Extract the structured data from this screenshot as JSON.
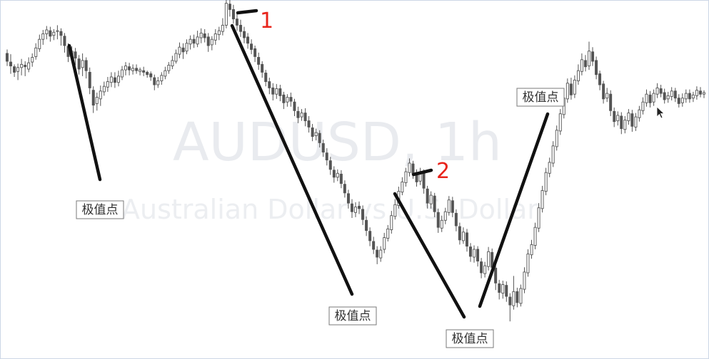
{
  "chart_data": {
    "type": "candlestick",
    "symbol": "AUDUSD, 1h",
    "description": "Australian Dollar vs U.S. Dollar",
    "candles": [
      [
        7.0,
        6.0,
        7.5,
        5.4
      ],
      [
        5.9,
        5.4,
        6.9,
        4.4
      ],
      [
        5.3,
        4.6,
        5.6,
        4.0
      ],
      [
        4.7,
        5.2,
        5.7,
        3.6
      ],
      [
        5.2,
        5.6,
        6.3,
        4.2
      ],
      [
        5.5,
        5.3,
        6.0,
        4.1
      ],
      [
        5.0,
        5.8,
        6.5,
        4.6
      ],
      [
        5.9,
        6.5,
        7.0,
        5.3
      ],
      [
        6.6,
        7.7,
        8.3,
        6.2
      ],
      [
        7.6,
        8.8,
        9.4,
        7.2
      ],
      [
        8.8,
        9.5,
        10.0,
        8.1
      ],
      [
        9.5,
        10.0,
        10.5,
        8.8
      ],
      [
        9.9,
        9.2,
        10.4,
        8.5
      ],
      [
        9.3,
        9.7,
        10.1,
        8.7
      ],
      [
        9.8,
        9.9,
        10.6,
        8.8
      ],
      [
        9.8,
        9.3,
        10.2,
        8.0
      ],
      [
        9.2,
        8.0,
        9.6,
        7.1
      ],
      [
        7.9,
        6.6,
        8.3,
        5.9
      ],
      [
        6.7,
        7.3,
        7.9,
        6.2
      ],
      [
        7.2,
        6.4,
        7.7,
        5.5
      ],
      [
        6.3,
        5.0,
        6.8,
        4.3
      ],
      [
        5.2,
        6.1,
        7.0,
        4.1
      ],
      [
        6.1,
        4.8,
        6.5,
        3.8
      ],
      [
        4.6,
        2.6,
        5.2,
        1.8
      ],
      [
        2.3,
        0.4,
        2.8,
        -0.6
      ],
      [
        0.6,
        1.4,
        2.0,
        -0.3
      ],
      [
        1.2,
        2.2,
        2.9,
        0.3
      ],
      [
        2.1,
        2.8,
        3.4,
        1.6
      ],
      [
        2.7,
        3.4,
        4.0,
        2.1
      ],
      [
        3.3,
        4.0,
        4.6,
        2.7
      ],
      [
        3.9,
        3.3,
        4.6,
        2.6
      ],
      [
        3.3,
        4.1,
        4.8,
        2.8
      ],
      [
        4.0,
        4.9,
        5.4,
        3.6
      ],
      [
        4.9,
        5.4,
        5.9,
        4.2
      ],
      [
        5.3,
        4.9,
        5.8,
        4.2
      ],
      [
        4.8,
        5.1,
        5.6,
        4.3
      ],
      [
        5.1,
        4.8,
        5.6,
        4.4
      ],
      [
        4.7,
        4.9,
        5.2,
        4.2
      ],
      [
        4.8,
        4.6,
        5.3,
        4.1
      ],
      [
        4.6,
        4.3,
        4.8,
        3.9
      ],
      [
        4.4,
        4.0,
        4.7,
        3.5
      ],
      [
        3.9,
        3.0,
        4.3,
        2.3
      ],
      [
        3.0,
        3.5,
        4.0,
        2.6
      ],
      [
        3.5,
        4.2,
        4.6,
        3.0
      ],
      [
        4.1,
        4.8,
        5.3,
        3.7
      ],
      [
        4.8,
        5.5,
        5.9,
        4.4
      ],
      [
        5.4,
        6.1,
        6.7,
        5.0
      ],
      [
        6.0,
        7.0,
        7.5,
        5.7
      ],
      [
        6.9,
        7.8,
        8.4,
        6.4
      ],
      [
        7.7,
        7.2,
        8.3,
        6.3
      ],
      [
        7.3,
        8.3,
        8.8,
        6.9
      ],
      [
        8.2,
        8.8,
        9.3,
        7.5
      ],
      [
        8.8,
        8.3,
        9.4,
        7.7
      ],
      [
        8.2,
        9.1,
        9.9,
        7.8
      ],
      [
        9.0,
        9.6,
        10.2,
        8.3
      ],
      [
        9.5,
        9.0,
        10.1,
        8.4
      ],
      [
        9.1,
        8.0,
        9.6,
        7.2
      ],
      [
        8.1,
        8.8,
        9.2,
        7.4
      ],
      [
        8.7,
        9.5,
        10.1,
        8.1
      ],
      [
        9.4,
        9.9,
        10.4,
        8.7
      ],
      [
        9.8,
        10.6,
        11.5,
        9.3
      ],
      [
        10.6,
        13.4,
        14.4,
        10.2
      ],
      [
        13.3,
        12.6,
        15.0,
        11.7
      ],
      [
        12.6,
        11.4,
        13.2,
        10.8
      ],
      [
        11.4,
        10.6,
        12.1,
        9.9
      ],
      [
        10.6,
        9.8,
        11.3,
        9.1
      ],
      [
        9.8,
        9.0,
        10.4,
        8.3
      ],
      [
        9.1,
        8.3,
        9.6,
        7.6
      ],
      [
        8.2,
        7.5,
        8.8,
        6.9
      ],
      [
        7.6,
        6.6,
        8.0,
        5.9
      ],
      [
        6.5,
        5.6,
        7.1,
        4.9
      ],
      [
        5.6,
        4.6,
        6.0,
        3.9
      ],
      [
        4.5,
        3.4,
        4.9,
        2.8
      ],
      [
        3.4,
        2.6,
        3.9,
        1.8
      ],
      [
        2.6,
        1.8,
        3.2,
        1.0
      ],
      [
        1.8,
        2.5,
        3.1,
        1.2
      ],
      [
        2.5,
        1.6,
        3.0,
        0.9
      ],
      [
        1.7,
        0.7,
        2.1,
        -0.1
      ],
      [
        0.8,
        1.4,
        1.8,
        0.2
      ],
      [
        1.4,
        0.9,
        2.0,
        0.2
      ],
      [
        0.8,
        -0.3,
        1.2,
        -1.0
      ],
      [
        -0.4,
        -1.2,
        0.2,
        -1.9
      ],
      [
        -1.1,
        -0.6,
        -0.1,
        -1.6
      ],
      [
        -0.6,
        -1.6,
        0.0,
        -2.3
      ],
      [
        -1.6,
        -2.4,
        -1.0,
        -3.1
      ],
      [
        -2.5,
        -3.6,
        -2.0,
        -4.2
      ],
      [
        -3.5,
        -3.1,
        -2.6,
        -4.1
      ],
      [
        -3.2,
        -4.4,
        -2.8,
        -5.0
      ],
      [
        -4.5,
        -5.6,
        -4.0,
        -6.2
      ],
      [
        -5.7,
        -6.6,
        -5.1,
        -7.3
      ],
      [
        -6.7,
        -7.8,
        -6.2,
        -8.5
      ],
      [
        -7.9,
        -8.8,
        -7.4,
        -9.5
      ],
      [
        -8.8,
        -8.3,
        -7.8,
        -9.3
      ],
      [
        -8.4,
        -9.6,
        -7.9,
        -10.2
      ],
      [
        -9.7,
        -10.8,
        -9.2,
        -11.4
      ],
      [
        -10.9,
        -12.1,
        -10.4,
        -12.8
      ],
      [
        -12.2,
        -13.2,
        -11.6,
        -14.0
      ],
      [
        -13.3,
        -12.6,
        -12.0,
        -13.9
      ],
      [
        -12.5,
        -12.8,
        -11.9,
        -13.5
      ],
      [
        -12.9,
        -14.2,
        -12.4,
        -14.9
      ],
      [
        -14.3,
        -15.6,
        -13.8,
        -16.3
      ],
      [
        -15.7,
        -16.9,
        -15.2,
        -17.6
      ],
      [
        -17.0,
        -18.0,
        -16.4,
        -18.6
      ],
      [
        -18.1,
        -19.0,
        -17.6,
        -19.9
      ],
      [
        -19.1,
        -18.1,
        -17.6,
        -19.6
      ],
      [
        -18.0,
        -16.5,
        -15.9,
        -18.5
      ],
      [
        -16.6,
        -15.4,
        -14.9,
        -17.0
      ],
      [
        -15.5,
        -13.7,
        -13.1,
        -16.0
      ],
      [
        -13.8,
        -12.3,
        -11.6,
        -14.2
      ],
      [
        -12.4,
        -10.6,
        -10.0,
        -12.8
      ],
      [
        -10.7,
        -9.4,
        -8.8,
        -11.1
      ],
      [
        -9.5,
        -8.1,
        -7.6,
        -10.0
      ],
      [
        -8.2,
        -7.0,
        -6.4,
        -8.7
      ],
      [
        -7.1,
        -8.3,
        -6.7,
        -9.0
      ],
      [
        -8.2,
        -9.4,
        -7.8,
        -10.0
      ],
      [
        -9.3,
        -8.2,
        -7.6,
        -9.8
      ],
      [
        -8.3,
        -10.2,
        -7.8,
        -10.9
      ],
      [
        -10.3,
        -12.1,
        -9.9,
        -12.8
      ],
      [
        -12.2,
        -11.1,
        -10.6,
        -12.8
      ],
      [
        -11.2,
        -13.2,
        -10.8,
        -13.9
      ],
      [
        -13.3,
        -15.2,
        -12.8,
        -15.9
      ],
      [
        -15.3,
        -14.3,
        -13.7,
        -15.8
      ],
      [
        -14.3,
        -13.2,
        -12.7,
        -14.8
      ],
      [
        -13.3,
        -11.7,
        -11.2,
        -13.7
      ],
      [
        -11.8,
        -13.3,
        -11.3,
        -13.9
      ],
      [
        -13.4,
        -15.0,
        -12.9,
        -15.7
      ],
      [
        -15.1,
        -16.8,
        -14.6,
        -17.4
      ],
      [
        -16.9,
        -15.8,
        -15.2,
        -17.3
      ],
      [
        -15.9,
        -17.6,
        -15.4,
        -18.3
      ],
      [
        -17.7,
        -18.9,
        -17.2,
        -19.6
      ],
      [
        -19.0,
        -18.0,
        -17.5,
        -19.7
      ],
      [
        -18.0,
        -19.5,
        -17.6,
        -20.2
      ],
      [
        -19.6,
        -21.0,
        -19.1,
        -21.7
      ],
      [
        -21.1,
        -20.1,
        -19.6,
        -21.6
      ],
      [
        -20.2,
        -18.3,
        -17.7,
        -20.7
      ],
      [
        -18.4,
        -20.3,
        -17.9,
        -21.0
      ],
      [
        -20.4,
        -22.3,
        -19.9,
        -23.2
      ],
      [
        -22.4,
        -23.5,
        -21.9,
        -24.4
      ],
      [
        -23.6,
        -22.5,
        -22.0,
        -24.3
      ],
      [
        -22.6,
        -24.0,
        -22.1,
        -24.7
      ],
      [
        -24.1,
        -25.1,
        -23.6,
        -27.2
      ],
      [
        -25.2,
        -23.4,
        -21.4,
        -25.7
      ],
      [
        -23.4,
        -24.8,
        -22.9,
        -25.4
      ],
      [
        -24.9,
        -23.0,
        -22.5,
        -25.3
      ],
      [
        -23.1,
        -20.9,
        -20.3,
        -23.6
      ],
      [
        -21.0,
        -18.6,
        -18.0,
        -21.5
      ],
      [
        -18.7,
        -17.4,
        -16.8,
        -19.2
      ],
      [
        -17.5,
        -15.2,
        -14.6,
        -18.0
      ],
      [
        -15.3,
        -12.7,
        -12.1,
        -15.8
      ],
      [
        -12.8,
        -10.5,
        -9.9,
        -13.3
      ],
      [
        -10.6,
        -8.2,
        -7.6,
        -11.1
      ],
      [
        -8.3,
        -6.9,
        -6.3,
        -8.8
      ],
      [
        -7.0,
        -4.8,
        -4.2,
        -7.5
      ],
      [
        -4.9,
        -2.8,
        -2.2,
        -5.4
      ],
      [
        -2.9,
        -0.7,
        -0.1,
        -3.4
      ],
      [
        -0.8,
        1.3,
        1.9,
        -1.3
      ],
      [
        1.2,
        3.2,
        3.8,
        0.7
      ],
      [
        3.1,
        1.7,
        3.9,
        1.1
      ],
      [
        1.8,
        3.6,
        4.2,
        1.3
      ],
      [
        3.5,
        4.8,
        5.6,
        3.0
      ],
      [
        4.7,
        6.2,
        7.0,
        4.2
      ],
      [
        6.1,
        5.3,
        6.8,
        4.7
      ],
      [
        5.4,
        7.3,
        8.5,
        4.9
      ],
      [
        7.2,
        6.0,
        7.8,
        5.4
      ],
      [
        6.1,
        4.3,
        6.6,
        3.7
      ],
      [
        4.4,
        3.0,
        4.8,
        2.3
      ],
      [
        3.1,
        1.2,
        3.5,
        0.6
      ],
      [
        1.3,
        1.9,
        2.6,
        0.8
      ],
      [
        1.8,
        -0.3,
        2.3,
        -1.0
      ],
      [
        -0.4,
        -1.7,
        0.1,
        -2.4
      ],
      [
        -1.6,
        -0.9,
        -0.4,
        -2.2
      ],
      [
        -1.0,
        -2.6,
        -0.5,
        -3.3
      ],
      [
        -2.7,
        -1.5,
        -1.0,
        -3.2
      ],
      [
        -1.6,
        -0.6,
        -0.1,
        -2.1
      ],
      [
        -0.7,
        -2.3,
        -0.2,
        -3.0
      ],
      [
        -2.4,
        -1.1,
        -0.6,
        -2.9
      ],
      [
        -1.2,
        -0.2,
        0.3,
        -1.7
      ],
      [
        -0.3,
        0.8,
        1.4,
        -0.8
      ],
      [
        0.7,
        1.8,
        2.4,
        0.2
      ],
      [
        1.7,
        0.7,
        2.2,
        0.1
      ],
      [
        0.8,
        1.9,
        2.4,
        0.3
      ],
      [
        1.8,
        2.6,
        3.2,
        1.3
      ],
      [
        2.5,
        1.9,
        3.0,
        1.4
      ],
      [
        2.0,
        1.1,
        2.5,
        0.6
      ],
      [
        1.2,
        1.6,
        2.1,
        0.7
      ],
      [
        1.5,
        2.2,
        2.7,
        1.0
      ],
      [
        2.2,
        1.3,
        2.6,
        0.8
      ],
      [
        1.3,
        0.6,
        1.8,
        0.1
      ],
      [
        0.7,
        1.3,
        1.9,
        0.2
      ],
      [
        1.2,
        1.9,
        2.4,
        0.7
      ],
      [
        1.9,
        1.2,
        2.4,
        0.7
      ],
      [
        1.3,
        1.7,
        2.1,
        0.8
      ],
      [
        1.6,
        2.3,
        2.8,
        1.1
      ],
      [
        2.2,
        1.8,
        2.7,
        1.4
      ],
      [
        1.8,
        2.0,
        2.3,
        1.3
      ]
    ],
    "labels": [
      "极值点",
      "极值点",
      "极值点",
      "极值点"
    ],
    "markers": [
      "1",
      "2"
    ],
    "grid": false,
    "colors": {
      "candle": "#555555",
      "trend_line": "#111111",
      "marker_number": "#e8241b",
      "watermark": "#e9ebef",
      "border": "#ccd6e6"
    }
  }
}
